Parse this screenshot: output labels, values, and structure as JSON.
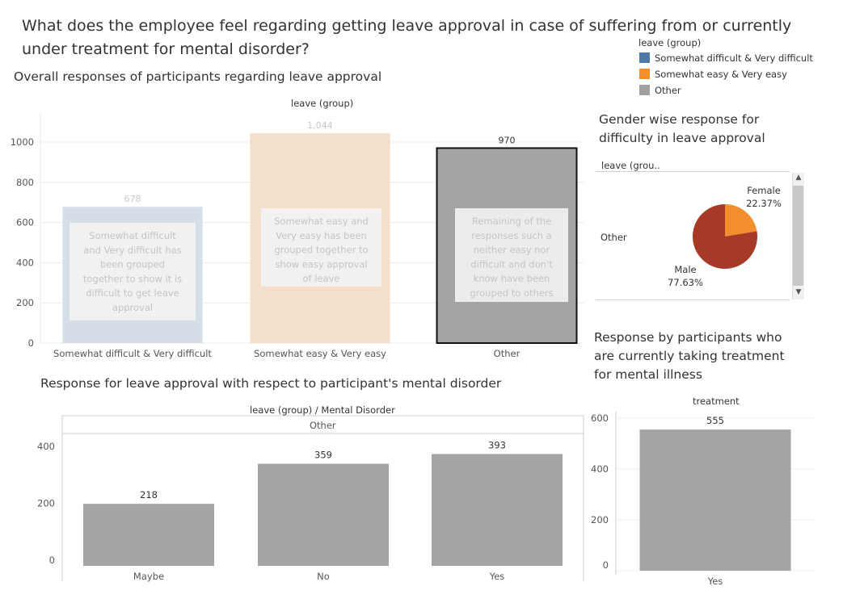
{
  "title": "What does the employee feel regarding getting leave approval in case of suffering from or currently under treatment for mental disorder?",
  "legend": {
    "title": "leave (group)",
    "items": [
      {
        "label": "Somewhat difficult & Very difficult",
        "color": "#4e79a7"
      },
      {
        "label": "Somewhat easy & Very easy",
        "color": "#f28e2b"
      },
      {
        "label": "Other",
        "color": "#a0a0a0"
      }
    ]
  },
  "overall": {
    "subtitle": "Overall responses of participants regarding leave approval",
    "header": "leave (group)",
    "annotations": [
      "Somewhat difficult and Very difficult has been grouped together to show it is difficult to get leave approval",
      "Somewhat easy and Very easy has been grouped together to show easy approval of leave",
      "Remaining of the responses such a neither easy nor difficult and don't know have been grouped to others"
    ]
  },
  "gender": {
    "subtitle": "Gender wise response for difficulty in leave approval",
    "header": "leave (grou..",
    "row_label": "Other",
    "female_label": "Female",
    "male_label": "Male"
  },
  "mental": {
    "subtitle": "Response for leave approval with respect to participant's mental disorder",
    "header": "leave (group)  /  Mental Disorder",
    "panel_label": "Other"
  },
  "treatment": {
    "subtitle": "Response by participants who are currently taking treatment for mental illness",
    "header": "treatment"
  },
  "chart_data": [
    {
      "type": "bar",
      "title": "Overall responses of participants regarding leave approval",
      "categories": [
        "Somewhat difficult & Very difficult",
        "Somewhat easy & Very easy",
        "Other"
      ],
      "values": [
        678,
        1044,
        970
      ],
      "value_labels": [
        "678",
        "1,044",
        "970"
      ],
      "colors": [
        "#d5dee6",
        "#f3dfcc",
        "#a4a4a4"
      ],
      "yticks": [
        0,
        200,
        400,
        600,
        800,
        1000
      ],
      "ytick_labels": [
        "0",
        "200",
        "400",
        "600",
        "800",
        "1000"
      ],
      "ylim": [
        0,
        1100
      ]
    },
    {
      "type": "pie",
      "title": "Gender wise response for difficulty in leave approval",
      "slices": [
        {
          "label": "Female",
          "value": 22.37,
          "value_label": "22.37%",
          "color": "#f28e2b"
        },
        {
          "label": "Male",
          "value": 77.63,
          "value_label": "77.63%",
          "color": "#a63a26"
        }
      ]
    },
    {
      "type": "bar",
      "title": "Response for leave approval with respect to participant's mental disorder",
      "categories": [
        "Maybe",
        "No",
        "Yes"
      ],
      "values": [
        218,
        359,
        393
      ],
      "value_labels": [
        "218",
        "359",
        "393"
      ],
      "color": "#a4a4a4",
      "yticks": [
        0,
        200,
        400
      ],
      "ytick_labels": [
        "0",
        "200",
        "400"
      ],
      "ylim": [
        0,
        465
      ]
    },
    {
      "type": "bar",
      "title": "Response by participants who are currently taking treatment for mental illness",
      "categories": [
        "Yes"
      ],
      "values": [
        555
      ],
      "value_labels": [
        "555"
      ],
      "color": "#a4a4a4",
      "yticks": [
        0,
        200,
        400,
        600
      ],
      "ytick_labels": [
        "0",
        "200",
        "400",
        "600"
      ],
      "ylim": [
        0,
        600
      ]
    }
  ]
}
